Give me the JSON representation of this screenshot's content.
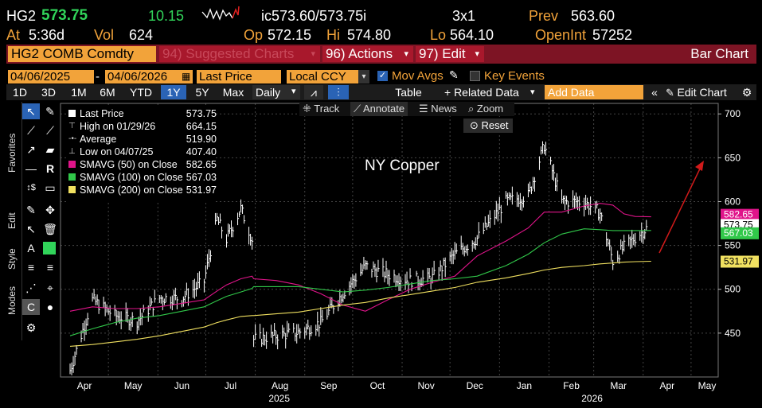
{
  "header": {
    "ticker": "HG2",
    "price": "573.75",
    "change": "10.15",
    "bid_ask": "ic573.60/573.75i",
    "size": "3x1",
    "prev_label": "Prev",
    "prev": "563.60",
    "at_label": "At",
    "time": "5:36d",
    "vol_label": "Vol",
    "vol": "624",
    "op_label": "Op",
    "op": "572.15",
    "hi_label": "Hi",
    "hi": "574.80",
    "lo_label": "Lo",
    "lo": "564.10",
    "openint_label": "OpenInt",
    "openint": "57252"
  },
  "toolbar": {
    "security": "HG2 COMB Comdty",
    "suggested": "94) Suggested Charts",
    "actions": "96) Actions",
    "edit": "97) Edit",
    "chart_type": "Bar Chart"
  },
  "controls": {
    "start_date": "04/06/2025",
    "dash": "-",
    "end_date": "04/06/2026",
    "field": "Last Price",
    "currency": "Local CCY",
    "mov_avgs": "Mov Avgs",
    "key_events": "Key Events"
  },
  "periods": [
    "1D",
    "3D",
    "1M",
    "6M",
    "YTD",
    "1Y",
    "5Y",
    "Max"
  ],
  "selected_period": "1Y",
  "frequency": "Daily",
  "actions_bar": {
    "table": "Table",
    "related": "+ Related Data",
    "add_data_placeholder": "Add Data",
    "edit_chart": "Edit Chart"
  },
  "chart_tools": {
    "track": "Track",
    "annotate": "Annotate",
    "news": "News",
    "zoom": "Zoom",
    "reset": "Reset"
  },
  "side_tabs": [
    "Favorites",
    "Edit",
    "Style",
    "Modes"
  ],
  "legend": [
    {
      "label": "Last Price",
      "value": "573.75",
      "marker": "white-square"
    },
    {
      "label": "High on 01/29/26",
      "value": "664.15",
      "marker": "high-icon"
    },
    {
      "label": "Average",
      "value": "519.90",
      "marker": "average-icon"
    },
    {
      "label": "Low on 04/07/25",
      "value": "407.40",
      "marker": "low-icon"
    },
    {
      "label": "SMAVG (50)  on Close",
      "value": "582.65",
      "marker": "#e0148a"
    },
    {
      "label": "SMAVG (100)  on Close",
      "value": "567.03",
      "marker": "#31c84a"
    },
    {
      "label": "SMAVG (200)  on Close",
      "value": "531.97",
      "marker": "#f0e060"
    }
  ],
  "colors": {
    "amber": "#f2a33a",
    "green_text": "#31d45a",
    "sma50": "#e0148a",
    "sma100": "#31c84a",
    "sma200": "#f0e060",
    "arrow": "#d01a1a",
    "toolbar_bg": "#7d1424"
  },
  "chart_data": {
    "type": "line",
    "title": "NY Copper",
    "x": [
      "2025-04-07",
      "2025-04-21",
      "2025-05-05",
      "2025-05-19",
      "2025-06-02",
      "2025-06-16",
      "2025-06-30",
      "2025-07-08",
      "2025-07-14",
      "2025-07-23",
      "2025-07-30",
      "2025-07-31",
      "2025-08-14",
      "2025-08-28",
      "2025-09-11",
      "2025-09-25",
      "2025-10-09",
      "2025-10-23",
      "2025-11-06",
      "2025-11-20",
      "2025-12-04",
      "2025-12-18",
      "2026-01-05",
      "2026-01-19",
      "2026-01-29",
      "2026-02-09",
      "2026-02-23",
      "2026-03-05",
      "2026-03-13",
      "2026-03-20",
      "2026-03-27",
      "2026-04-06"
    ],
    "series": [
      {
        "name": "Last Price",
        "values": [
          407.4,
          488,
          470,
          464,
          490,
          490,
          509,
          580,
          557,
          592,
          557,
          443,
          447,
          451,
          462,
          496,
          526,
          517,
          510,
          513,
          540,
          558,
          600,
          607,
          664.15,
          600,
          600,
          587,
          532,
          548,
          559,
          573.75
        ]
      },
      {
        "name": "SMAVG (50)  on Close",
        "values": [
          475,
          480,
          478,
          478,
          480,
          484,
          488,
          498,
          505,
          512,
          515,
          512,
          510,
          505,
          495,
          482,
          475,
          488,
          500,
          508,
          515,
          538,
          555,
          570,
          588,
          588,
          595,
          598,
          596,
          586,
          583,
          582.65
        ]
      },
      {
        "name": "SMAVG (100)  on Close",
        "values": [
          447,
          455,
          462,
          467,
          470,
          475,
          480,
          487,
          492,
          497,
          501,
          503,
          503,
          503,
          500,
          497,
          499,
          502,
          506,
          510,
          512,
          515,
          527,
          540,
          553,
          563,
          569,
          568,
          567,
          567,
          567,
          567.03
        ]
      },
      {
        "name": "SMAVG (200)  on Close",
        "values": [
          435,
          437,
          440,
          443,
          447,
          452,
          457,
          462,
          465,
          469,
          470,
          470,
          472,
          474,
          478,
          482,
          485,
          490,
          494,
          498,
          502,
          508,
          513,
          518,
          522,
          525,
          527,
          529,
          530,
          531,
          531.5,
          531.97
        ]
      }
    ],
    "x_tick_labels": [
      "Apr",
      "May",
      "Jun",
      "Jul",
      "Aug",
      "Sep",
      "Oct",
      "Nov",
      "Dec",
      "Jan",
      "Feb",
      "Mar",
      "Apr",
      "May"
    ],
    "year_labels": [
      "2025",
      "2026"
    ],
    "y_tick_labels": [
      "450",
      "500",
      "550",
      "600",
      "650",
      "700"
    ],
    "ylim": [
      400,
      712
    ],
    "xlim": [
      "2025-04-01",
      "2026-05-18"
    ],
    "grid": true,
    "legend": "top-left",
    "last_value_tags": [
      "582.65",
      "573.75",
      "567.03",
      "531.97"
    ]
  }
}
